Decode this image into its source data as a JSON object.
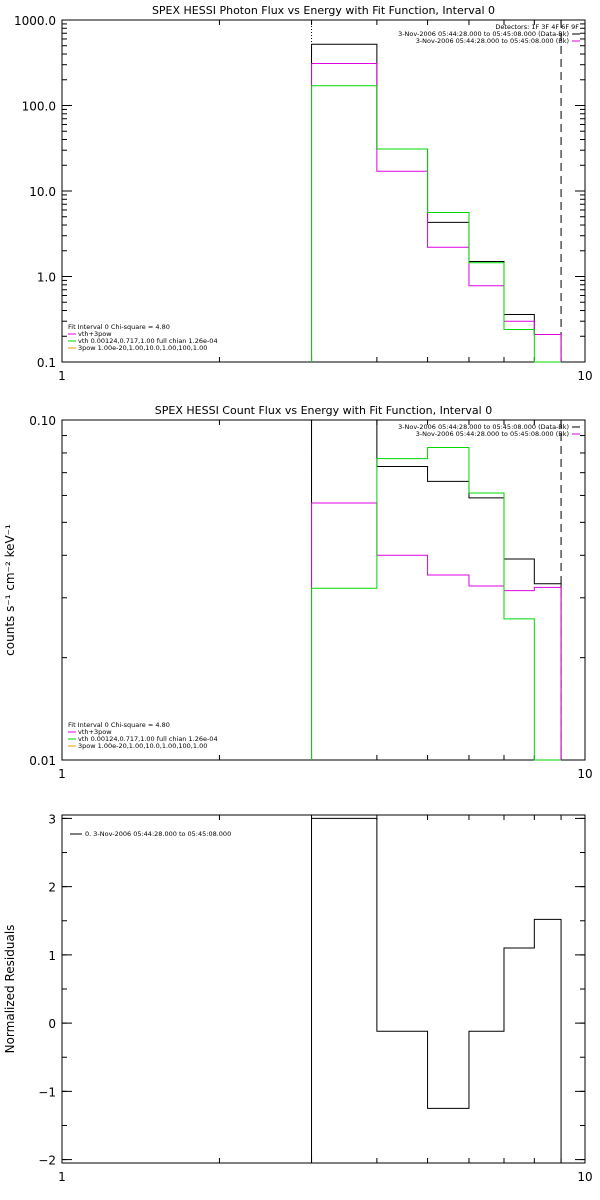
{
  "chart_data": [
    {
      "type": "line",
      "title": "SPEX HESSI Photon Flux vs Energy with Fit Function, Interval 0",
      "xlabel": "",
      "ylabel": "",
      "x_scale": "log",
      "y_scale": "log",
      "xlim": [
        1,
        10
      ],
      "ylim": [
        0.1,
        1000
      ],
      "x_ticks": [
        {
          "v": 1,
          "label": "1"
        },
        {
          "v": 10,
          "label": "10"
        }
      ],
      "y_ticks": [
        {
          "v": 0.1,
          "label": "0.1"
        },
        {
          "v": 1,
          "label": "1.0"
        },
        {
          "v": 10,
          "label": "10.0"
        },
        {
          "v": 100,
          "label": "100.0"
        },
        {
          "v": 1000,
          "label": "1000.0"
        }
      ],
      "x_edges": [
        3,
        4,
        5,
        6,
        7,
        8,
        9
      ],
      "series": [
        {
          "color": "#000000",
          "values": [
            520,
            31,
            4.3,
            1.5,
            0.36,
            0.21
          ]
        },
        {
          "color": "#e000e0",
          "values": [
            310,
            17,
            2.2,
            0.78,
            0.3,
            0.21
          ]
        },
        {
          "color": "#00d800",
          "values": [
            170,
            31,
            5.6,
            1.45,
            0.24,
            0.1
          ]
        }
      ],
      "vlines": [
        {
          "x": 3,
          "style": "dotted"
        },
        {
          "x": 9,
          "style": "dashed"
        }
      ],
      "legend_topright": [
        {
          "text": "Detectors: 1F 3F 4F 6F 9F",
          "line": null
        },
        {
          "text": "3-Nov-2006 05:44:28.000 to 05:45:08.000 (Data-Bk)",
          "line": "#000000"
        },
        {
          "text": "3-Nov-2006 05:44:28.000 to 05:45:08.000 (Bk)",
          "line": "#e000e0"
        }
      ],
      "legend_bottomleft": [
        {
          "text": "Fit Interval 0   Chi-square = 4.80",
          "line": null
        },
        {
          "text": "vth+3pow",
          "line": "#e000e0"
        },
        {
          "text": "vth 0.00124,0.717,1.00   full chian 1.26e-04",
          "line": "#00d800"
        },
        {
          "text": "3pow 1.00e-20,1.00,10.0,1.00,100,1.00",
          "line": "#e0a000"
        }
      ]
    },
    {
      "type": "line",
      "title": "SPEX HESSI Count Flux vs Energy with Fit Function, Interval 0",
      "xlabel": "",
      "ylabel": "counts s⁻¹ cm⁻² keV⁻¹",
      "x_scale": "log",
      "y_scale": "log",
      "xlim": [
        1,
        10
      ],
      "ylim": [
        0.01,
        0.1
      ],
      "x_ticks": [
        {
          "v": 1,
          "label": "1"
        },
        {
          "v": 10,
          "label": "10"
        }
      ],
      "y_ticks": [
        {
          "v": 0.01,
          "label": "0.01"
        },
        {
          "v": 0.1,
          "label": "0.10"
        }
      ],
      "x_edges": [
        3,
        4,
        5,
        6,
        7,
        8,
        9
      ],
      "series": [
        {
          "color": "#000000",
          "values": [
            0.1,
            0.073,
            0.066,
            0.059,
            0.039,
            0.033
          ]
        },
        {
          "color": "#e000e0",
          "values": [
            0.057,
            0.04,
            0.035,
            0.0325,
            0.0315,
            0.0322
          ]
        },
        {
          "color": "#00d800",
          "values": [
            0.032,
            0.077,
            0.083,
            0.061,
            0.026,
            0.01
          ]
        }
      ],
      "vlines": [
        {
          "x": 3,
          "style": "dotted"
        },
        {
          "x": 9,
          "style": "dashed"
        }
      ],
      "legend_topright": [
        {
          "text": "3-Nov-2006 05:44:28.000 to 05:45:08.000 (Data-Bk)",
          "line": "#000000"
        },
        {
          "text": "3-Nov-2006 05:44:28.000 to 05:45:08.000 (Bk)",
          "line": "#e000e0"
        }
      ],
      "legend_bottomleft": [
        {
          "text": "Fit Interval 0   Chi-square = 4.80",
          "line": null
        },
        {
          "text": "vth+3pow",
          "line": "#e000e0"
        },
        {
          "text": "vth 0.00124,0.717,1.00   full chian 1.26e-04",
          "line": "#00d800"
        },
        {
          "text": "3pow 1.00e-20,1.00,10.0,1.00,100,1.00",
          "line": "#e0a000"
        }
      ]
    },
    {
      "type": "line",
      "title": "",
      "xlabel": "",
      "ylabel": "Normalized Residuals",
      "x_scale": "log",
      "y_scale": "linear",
      "xlim": [
        1,
        10
      ],
      "ylim": [
        -2.05,
        3.05
      ],
      "x_ticks": [
        {
          "v": 1,
          "label": "1"
        },
        {
          "v": 10,
          "label": "10"
        }
      ],
      "y_ticks": [
        {
          "v": -2,
          "label": "−2"
        },
        {
          "v": -1,
          "label": "−1"
        },
        {
          "v": 0,
          "label": "0"
        },
        {
          "v": 1,
          "label": "1"
        },
        {
          "v": 2,
          "label": "2"
        },
        {
          "v": 3,
          "label": "3"
        }
      ],
      "x_edges": [
        3,
        4,
        5,
        6,
        7,
        8,
        9
      ],
      "series": [
        {
          "color": "#000000",
          "values": [
            3.0,
            -0.12,
            -1.25,
            -0.12,
            1.1,
            1.52
          ]
        }
      ],
      "vlines": [],
      "legend_topright": [],
      "legend_topleft": [
        {
          "text": "0. 3-Nov-2006 05:44:28.000 to 05:45:08.000",
          "line": "#000000"
        }
      ],
      "legend_bottomleft": []
    }
  ]
}
